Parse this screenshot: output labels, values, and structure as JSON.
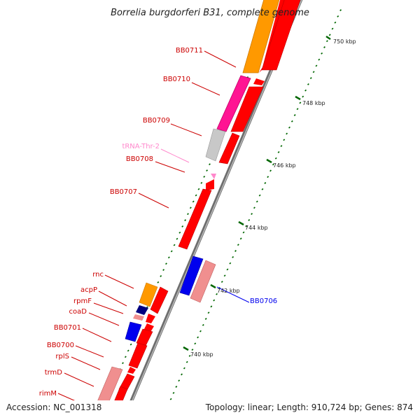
{
  "title": "Borrelia burgdorferi B31, complete genome",
  "accession": "Accession: NC_001318",
  "topology": "Topology: linear; Length: 910,724 bp; Genes: 874",
  "colors": {
    "backbone": "#7d7d7d",
    "forward": "#ff0000",
    "forward_label": "#cc0000",
    "reverse_pale": "#f08f8f",
    "blue": "#0000ee",
    "navy": "#000080",
    "orange": "#ff9900",
    "magenta": "#ff1493",
    "grey": "#c8c8c8",
    "trna": "#ff88cc",
    "tick": "#006600"
  },
  "scale_labels": [
    "750 kbp",
    "748 kbp",
    "746 kbp",
    "744 kbp",
    "742 kbp",
    "740 kbp"
  ],
  "gene_labels": [
    {
      "name": "BB0711",
      "color": "#cc0000"
    },
    {
      "name": "BB0710",
      "color": "#cc0000"
    },
    {
      "name": "BB0709",
      "color": "#cc0000"
    },
    {
      "name": "tRNA-Thr-2",
      "color": "#ff88cc"
    },
    {
      "name": "BB0708",
      "color": "#cc0000"
    },
    {
      "name": "BB0707",
      "color": "#cc0000"
    },
    {
      "name": "BB0706",
      "color": "#0000ee"
    },
    {
      "name": "rnc",
      "color": "#cc0000"
    },
    {
      "name": "acpP",
      "color": "#cc0000"
    },
    {
      "name": "rpmF",
      "color": "#cc0000"
    },
    {
      "name": "coaD",
      "color": "#cc0000"
    },
    {
      "name": "BB0701",
      "color": "#cc0000"
    },
    {
      "name": "BB0700",
      "color": "#cc0000"
    },
    {
      "name": "rplS",
      "color": "#cc0000"
    },
    {
      "name": "trmD",
      "color": "#cc0000"
    },
    {
      "name": "rimM",
      "color": "#cc0000"
    }
  ]
}
